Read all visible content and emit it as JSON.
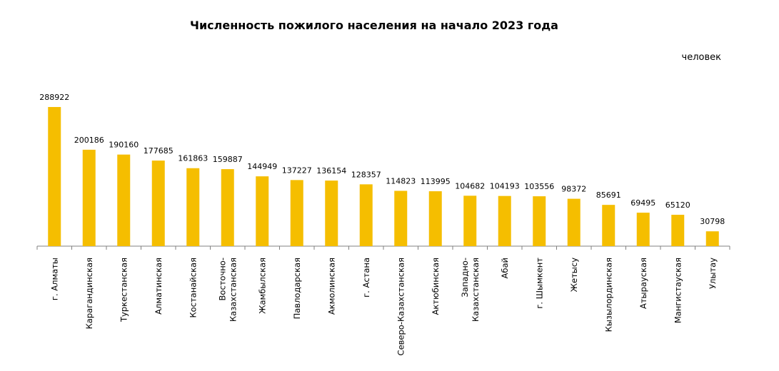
{
  "chart_data": {
    "type": "bar",
    "title": "Численность пожилого населения на начало 2023 года",
    "unit_label": "человек",
    "xlabel": "",
    "ylabel": "",
    "ylim": [
      0,
      320000
    ],
    "grid": false,
    "legend": "none",
    "bar_color": "#F5BE00",
    "categories": [
      [
        "г. Алматы"
      ],
      [
        "Карагандинская"
      ],
      [
        "Туркестанская"
      ],
      [
        "Алматинская"
      ],
      [
        "Костанайская"
      ],
      [
        "Восточно-",
        "Казахстанская"
      ],
      [
        "Жамбылская"
      ],
      [
        "Павлодарская"
      ],
      [
        "Акмолинская"
      ],
      [
        "г. Астана"
      ],
      [
        "Северо-Казахстанская"
      ],
      [
        "Актюбинская"
      ],
      [
        "Западно-",
        "Казахстанская"
      ],
      [
        "Абай"
      ],
      [
        "г. Шымкент"
      ],
      [
        "Жетысу"
      ],
      [
        "Кызылординская"
      ],
      [
        "Атырауская"
      ],
      [
        "Мангистауская"
      ],
      [
        "Улытау"
      ]
    ],
    "values": [
      288922,
      200186,
      190160,
      177685,
      161863,
      159887,
      144949,
      137227,
      136154,
      128357,
      114823,
      113995,
      104682,
      104193,
      103556,
      98372,
      85691,
      69495,
      65120,
      30798
    ]
  }
}
